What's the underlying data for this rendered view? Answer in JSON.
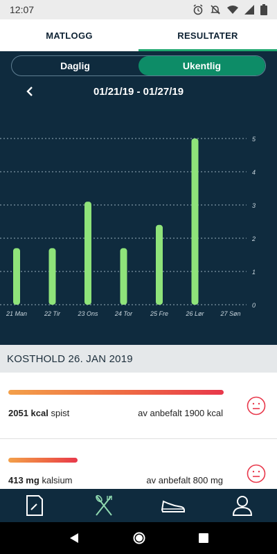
{
  "status_bar": {
    "time": "12:07",
    "icons": [
      "alarm-icon",
      "mute-icon",
      "wifi-icon",
      "signal-icon",
      "battery-icon"
    ]
  },
  "tabs": [
    {
      "label": "MATLOGG",
      "active": false
    },
    {
      "label": "RESULTATER",
      "active": true
    }
  ],
  "segment": {
    "daily": "Daglig",
    "weekly": "Ukentlig",
    "selected": "weekly"
  },
  "date_range": "01/21/19 - 01/27/19",
  "chart_data": {
    "type": "bar",
    "categories": [
      "21 Man",
      "22 Tir",
      "23 Ons",
      "24 Tor",
      "25 Fre",
      "26 Lør",
      "27 Søn"
    ],
    "values": [
      1.7,
      1.7,
      3.1,
      1.7,
      2.4,
      5.0,
      0
    ],
    "ylim": [
      0,
      5
    ],
    "yticks": [
      "0",
      "1",
      "2",
      "3",
      "4",
      "5"
    ],
    "y_axis_side": "right",
    "grid": true,
    "bar_color": "#8fe37a",
    "grid_color": "#9bb0bf"
  },
  "section_header": "KOSTHOLD 26. JAN 2019",
  "nutrients": [
    {
      "amount": "2051 kcal",
      "label": "spist",
      "recommended": "av anbefalt 1900 kcal",
      "fill_fraction": 1.0,
      "status_icon": "sad-face-icon"
    },
    {
      "amount": "413 mg",
      "label": "kalsium",
      "recommended": "av anbefalt 800 mg",
      "fill_fraction": 0.32,
      "status_icon": "sad-face-icon"
    }
  ],
  "bottom_nav": [
    {
      "icon": "diary-icon",
      "active": false
    },
    {
      "icon": "cutlery-icon",
      "active": true
    },
    {
      "icon": "shoe-icon",
      "active": false
    },
    {
      "icon": "profile-icon",
      "active": false
    }
  ],
  "colors": {
    "panel": "#0f2b3e",
    "accent_green": "#0d8c67",
    "tab_underline": "#1fa870",
    "warning_red": "#e8384b"
  }
}
